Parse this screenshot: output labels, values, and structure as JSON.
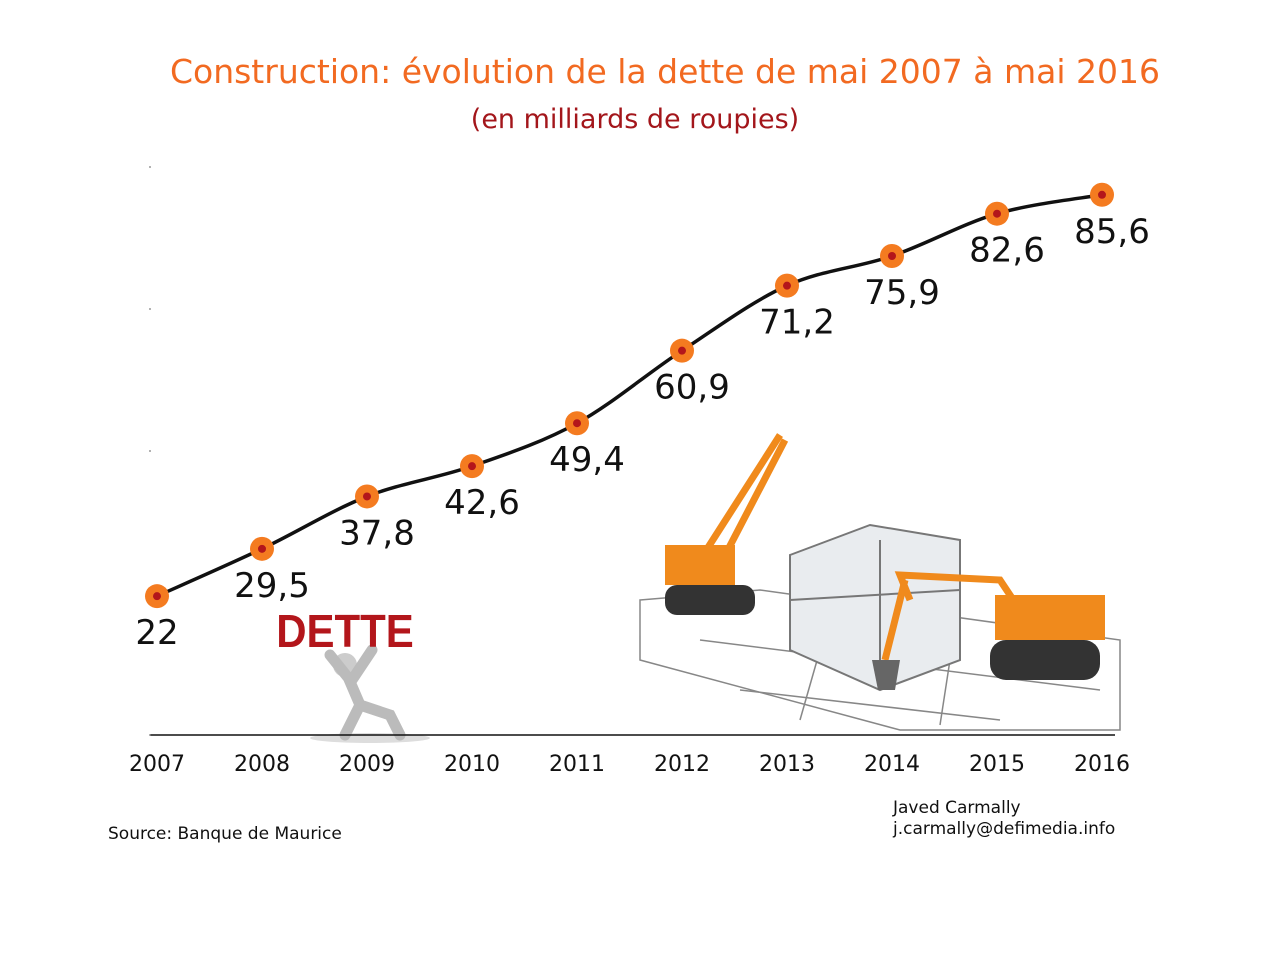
{
  "chart_data": {
    "type": "line",
    "title": "Construction: évolution de la dette de mai 2007 à mai 2016",
    "subtitle": "(en milliards de roupies)",
    "xlabel": "",
    "ylabel": "",
    "categories": [
      "2007",
      "2008",
      "2009",
      "2010",
      "2011",
      "2012",
      "2013",
      "2014",
      "2015",
      "2016"
    ],
    "values": [
      22,
      29.5,
      37.8,
      42.6,
      49.4,
      60.9,
      71.2,
      75.9,
      82.6,
      85.6
    ],
    "value_labels": [
      "22",
      "29,5",
      "37,8",
      "42,6",
      "49,4",
      "60,9",
      "71,2",
      "75,9",
      "82,6",
      "85,6"
    ],
    "ylim": [
      0,
      90
    ],
    "grid": false,
    "colors": {
      "line": "#111111",
      "marker": "#f47b20",
      "marker_center": "#b3161b"
    }
  },
  "illustration": {
    "sign_text": "DETTE"
  },
  "footer": {
    "source": "Source: Banque de Maurice",
    "author_name": "Javed Carmally",
    "author_email": "j.carmally@defimedia.info"
  }
}
